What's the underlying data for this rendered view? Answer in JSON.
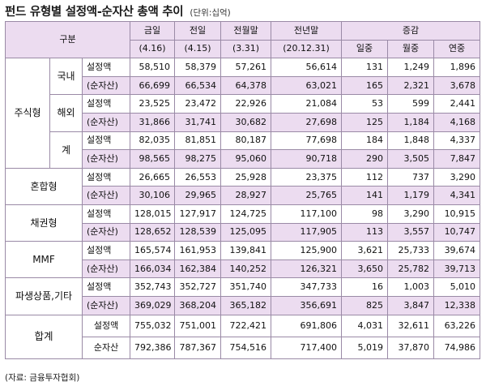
{
  "title": {
    "main": "펀드 유형별 설정액-순자산 총액 추이",
    "unit": "(단위:십억)"
  },
  "header": {
    "gubun": "구분",
    "columns": [
      {
        "label": "금일",
        "date": "(4.16)"
      },
      {
        "label": "전일",
        "date": "(4.15)"
      },
      {
        "label": "전월말",
        "date": "(3.31)"
      },
      {
        "label": "전년말",
        "date": "(20.12.31)"
      }
    ],
    "change_label": "증감",
    "change_columns": [
      "일중",
      "월중",
      "연중"
    ]
  },
  "rows": {
    "stock_group": "주식형",
    "domestic": "국내",
    "overseas": "해외",
    "sum": "계",
    "mixed": "혼합형",
    "bond": "채권형",
    "mmf": "MMF",
    "deriv": "파생상품,기타",
    "total": "합계",
    "setting": "설정액",
    "netasset": "(순자산)",
    "total_netasset": "순자산"
  },
  "table_data": [
    {
      "values": [
        "58,510",
        "58,379",
        "57,261",
        "56,614",
        "131",
        "1,249",
        "1,896"
      ]
    },
    {
      "values": [
        "66,699",
        "66,534",
        "64,378",
        "63,021",
        "165",
        "2,321",
        "3,678"
      ]
    },
    {
      "values": [
        "23,525",
        "23,472",
        "22,926",
        "21,084",
        "53",
        "599",
        "2,441"
      ]
    },
    {
      "values": [
        "31,866",
        "31,741",
        "30,682",
        "27,698",
        "125",
        "1,184",
        "4,168"
      ]
    },
    {
      "values": [
        "82,035",
        "81,851",
        "80,187",
        "77,698",
        "184",
        "1,848",
        "4,337"
      ]
    },
    {
      "values": [
        "98,565",
        "98,275",
        "95,060",
        "90,718",
        "290",
        "3,505",
        "7,847"
      ]
    },
    {
      "values": [
        "26,665",
        "26,553",
        "25,928",
        "23,375",
        "112",
        "737",
        "3,290"
      ]
    },
    {
      "values": [
        "30,106",
        "29,965",
        "28,927",
        "25,765",
        "141",
        "1,179",
        "4,341"
      ]
    },
    {
      "values": [
        "128,015",
        "127,917",
        "124,725",
        "117,100",
        "98",
        "3,290",
        "10,915"
      ]
    },
    {
      "values": [
        "128,652",
        "128,539",
        "125,095",
        "117,905",
        "113",
        "3,557",
        "10,747"
      ]
    },
    {
      "values": [
        "165,574",
        "161,953",
        "139,841",
        "125,900",
        "3,621",
        "25,733",
        "39,674"
      ]
    },
    {
      "values": [
        "166,034",
        "162,384",
        "140,252",
        "126,321",
        "3,650",
        "25,782",
        "39,713"
      ]
    },
    {
      "values": [
        "352,743",
        "352,727",
        "351,740",
        "347,733",
        "16",
        "1,003",
        "5,010"
      ]
    },
    {
      "values": [
        "369,029",
        "368,204",
        "365,182",
        "356,691",
        "825",
        "3,847",
        "12,338"
      ]
    },
    {
      "values": [
        "755,032",
        "751,001",
        "722,421",
        "691,806",
        "4,031",
        "32,611",
        "63,226"
      ]
    },
    {
      "values": [
        "792,386",
        "787,367",
        "754,516",
        "717,400",
        "5,019",
        "37,870",
        "74,986"
      ]
    }
  ],
  "source": "(자료: 금융투자협회)",
  "colors": {
    "header_bg": "#ecdcf0",
    "border": "#9a8aa6"
  }
}
